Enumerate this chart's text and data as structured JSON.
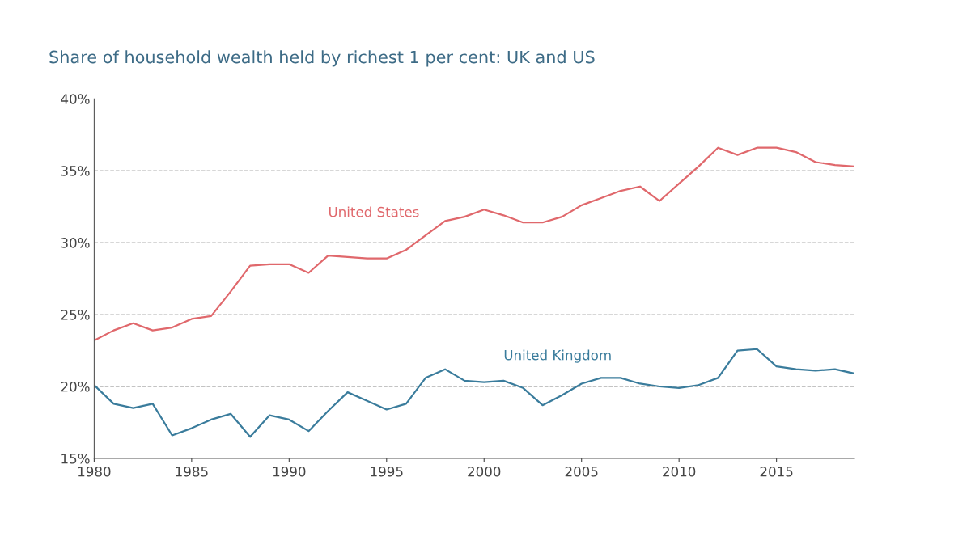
{
  "chart_data": {
    "type": "line",
    "title": "Share of household wealth held by richest 1 per cent: UK and US",
    "x": [
      1980,
      1981,
      1982,
      1983,
      1984,
      1985,
      1986,
      1987,
      1988,
      1989,
      1990,
      1991,
      1992,
      1993,
      1994,
      1995,
      1996,
      1997,
      1998,
      1999,
      2000,
      2001,
      2002,
      2003,
      2004,
      2005,
      2006,
      2007,
      2008,
      2009,
      2010,
      2011,
      2012,
      2013,
      2014,
      2015,
      2016,
      2017,
      2018,
      2019
    ],
    "series": [
      {
        "name": "United States",
        "color": "#e0686c",
        "values": [
          23.2,
          23.9,
          24.4,
          23.9,
          24.1,
          24.7,
          24.9,
          26.6,
          28.4,
          28.5,
          28.5,
          27.9,
          29.1,
          29.0,
          28.9,
          28.9,
          29.5,
          30.5,
          31.5,
          31.8,
          32.3,
          31.9,
          31.4,
          31.4,
          31.8,
          32.6,
          33.1,
          33.6,
          33.9,
          32.9,
          34.1,
          35.3,
          36.6,
          36.1,
          36.6,
          36.6,
          36.3,
          35.6,
          35.4,
          35.3
        ]
      },
      {
        "name": "United Kingdom",
        "color": "#3a7c9c",
        "values": [
          20.1,
          18.8,
          18.5,
          18.8,
          16.6,
          17.1,
          17.7,
          18.1,
          16.5,
          18.0,
          17.7,
          16.9,
          18.3,
          19.6,
          19.0,
          18.4,
          18.8,
          20.6,
          21.2,
          20.4,
          20.3,
          20.4,
          19.9,
          18.7,
          19.4,
          20.2,
          20.6,
          20.6,
          20.2,
          20.0,
          19.9,
          20.1,
          20.6,
          22.5,
          22.6,
          21.4,
          21.2,
          21.1,
          21.2,
          20.9
        ]
      }
    ],
    "xlim": [
      1980,
      2019
    ],
    "xticks": [
      1980,
      1985,
      1990,
      1995,
      2000,
      2005,
      2010,
      2015
    ],
    "ylim": [
      15,
      40
    ],
    "yticks": [
      {
        "value": 15,
        "label": "15%"
      },
      {
        "value": 20,
        "label": "20%"
      },
      {
        "value": 25,
        "label": "25%"
      },
      {
        "value": 30,
        "label": "30%"
      },
      {
        "value": 35,
        "label": "35%"
      },
      {
        "value": 40,
        "label": "40%"
      }
    ],
    "grid": "y",
    "legend": false,
    "line_style": "solid",
    "marker": "none"
  }
}
